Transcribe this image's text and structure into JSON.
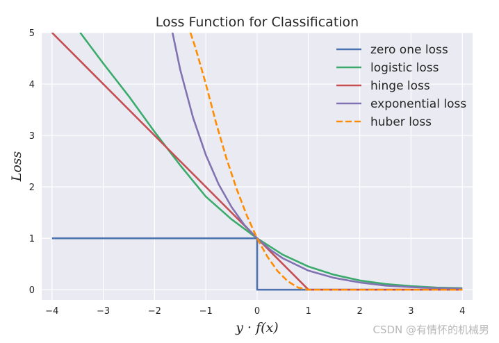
{
  "watermark": "CSDN @有情怀的机械男",
  "chart_data": {
    "type": "line",
    "title": "Loss Function for Classification",
    "xlabel": "y · f(x)",
    "ylabel": "Loss",
    "xlim": [
      -4.2,
      4.2
    ],
    "ylim": [
      -0.2,
      5
    ],
    "xticks": [
      -4,
      -3,
      -2,
      -1,
      0,
      1,
      2,
      3,
      4
    ],
    "xtick_labels": [
      "−4",
      "−3",
      "−2",
      "−1",
      "0",
      "1",
      "2",
      "3",
      "4"
    ],
    "yticks": [
      0,
      1,
      2,
      3,
      4,
      5
    ],
    "ytick_labels": [
      "0",
      "1",
      "2",
      "3",
      "4",
      "5"
    ],
    "grid": true,
    "legend_position": "top-right",
    "series": [
      {
        "name": "zero one loss",
        "color": "#4c72b0",
        "dash": false,
        "x": [
          -4,
          0,
          0,
          4
        ],
        "y": [
          1,
          1,
          0,
          0
        ]
      },
      {
        "name": "logistic loss",
        "color": "#3aab6b",
        "dash": false,
        "x": [
          -3.45,
          -3,
          -2.5,
          -2,
          -1.5,
          -1,
          -0.5,
          0,
          0.5,
          1,
          1.5,
          2,
          2.5,
          3,
          3.5,
          4
        ],
        "y": [
          5.0,
          4.4,
          3.76,
          3.07,
          2.42,
          1.81,
          1.37,
          1.0,
          0.68,
          0.45,
          0.29,
          0.18,
          0.11,
          0.07,
          0.04,
          0.03
        ]
      },
      {
        "name": "hinge loss",
        "color": "#c44e52",
        "dash": false,
        "x": [
          -4,
          1,
          4
        ],
        "y": [
          5,
          0,
          0
        ]
      },
      {
        "name": "exponential loss",
        "color": "#8172b2",
        "dash": false,
        "x": [
          -1.65,
          -1.5,
          -1.25,
          -1,
          -0.75,
          -0.5,
          -0.25,
          0,
          0.25,
          0.5,
          1,
          1.5,
          2,
          2.5,
          3,
          3.5,
          4
        ],
        "y": [
          5.0,
          4.28,
          3.35,
          2.62,
          2.05,
          1.61,
          1.26,
          1.0,
          0.78,
          0.61,
          0.37,
          0.23,
          0.14,
          0.08,
          0.05,
          0.03,
          0.02
        ]
      },
      {
        "name": "huber loss",
        "color": "#ff8c00",
        "dash": true,
        "x": [
          -1.3,
          -1.2,
          -1,
          -0.8,
          -0.6,
          -0.4,
          -0.2,
          0,
          0.2,
          0.4,
          0.6,
          0.8,
          1,
          2,
          3,
          4
        ],
        "y": [
          5.0,
          4.7,
          4.0,
          3.24,
          2.56,
          1.96,
          1.44,
          1.0,
          0.64,
          0.36,
          0.16,
          0.04,
          0,
          0,
          0,
          0
        ]
      }
    ]
  }
}
